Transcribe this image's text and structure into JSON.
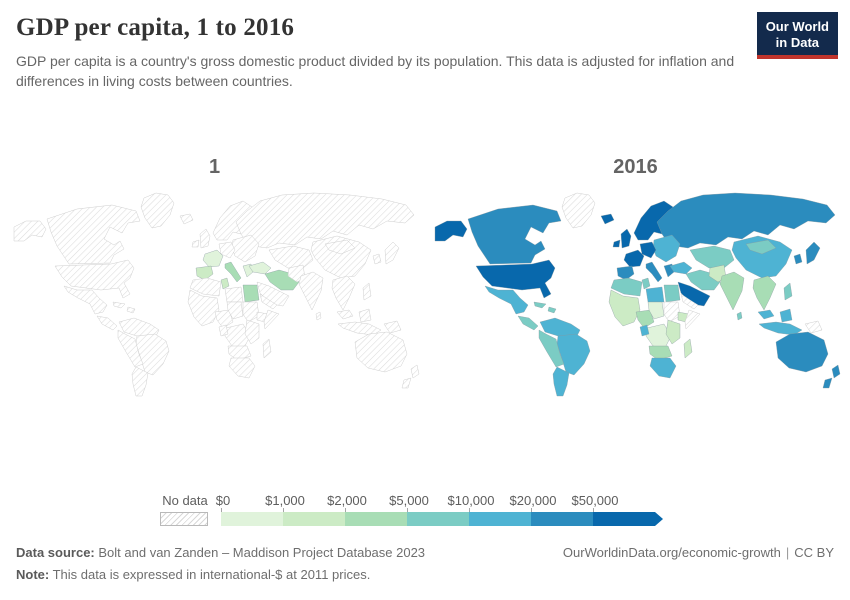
{
  "logo": {
    "line1": "Our World",
    "line2": "in Data",
    "bg_color": "#132a4c",
    "stripe_color": "#c0342c"
  },
  "chart_data": {
    "type": "choropleth-map",
    "title": "GDP per capita, 1 to 2016",
    "subtitle": "GDP per capita is a country's gross domestic product divided by its population. This data is adjusted for inflation and differences in living costs between countries.",
    "unit": "international-$ at 2011 prices",
    "no_data_value": "nodata",
    "legend": {
      "no_data_label": "No data",
      "bin_labels": [
        "$0",
        "$1,000",
        "$2,000",
        "$5,000",
        "$10,000",
        "$20,000",
        "$50,000"
      ],
      "bin_colors": [
        "#e0f3db",
        "#ccebc5",
        "#a8ddb5",
        "#7bccc4",
        "#4eb3d3",
        "#2b8cbe",
        "#0868ac"
      ]
    },
    "years": [
      {
        "label": "1",
        "values": {
          "france": 0,
          "iberia": 1,
          "italy": 2,
          "greece": 0,
          "turkey": 0,
          "tunisia": 1,
          "egypt": 2,
          "middle-east": 2
        }
      },
      {
        "label": "2016",
        "values": {
          "greenland": "nodata",
          "alaska": 6,
          "canada": 5,
          "usa": 6,
          "mexico": 4,
          "central-america": 3,
          "caribbean": 3,
          "sa-north": 4,
          "brazil": 4,
          "peru-bolivia": 3,
          "argentina-chile": 4,
          "iceland": 6,
          "uk": 6,
          "ireland": 6,
          "scandinavia": 6,
          "france": 6,
          "germany": 6,
          "iberia": 5,
          "italy": 5,
          "east-europe": 4,
          "greece": 5,
          "russia": 5,
          "central-asia": 3,
          "turkey": 4,
          "middle-east": 3,
          "saudi": 6,
          "yemen": "nodata",
          "morocco-algeria": 3,
          "tunisia": 3,
          "libya": 4,
          "egypt": 3,
          "west-africa": 1,
          "nigeria": 2,
          "chad": 0,
          "sudan": "nodata",
          "ethiopia": 1,
          "somalia": "nodata",
          "gabon": 4,
          "congo": 0,
          "east-africa": 1,
          "angola-zambia": 2,
          "southern-africa": 4,
          "madagascar": 1,
          "india": 2,
          "sri-lanka": 3,
          "pakistan-afghan": 1,
          "china": 4,
          "mongolia": 3,
          "se-asia": 2,
          "malaysia": 4,
          "indonesia": 4,
          "philippines": 3,
          "japan": 5,
          "korea": 5,
          "png": "nodata",
          "australia": 5,
          "new-zealand": 5
        }
      }
    ]
  },
  "footer": {
    "source_label": "Data source:",
    "source": "Bolt and van Zanden – Maddison Project Database 2023",
    "note_label": "Note:",
    "note": "This data is expressed in international-$ at 2011 prices.",
    "url": "OurWorldinData.org/economic-growth",
    "divider": "|",
    "license": "CC BY"
  }
}
